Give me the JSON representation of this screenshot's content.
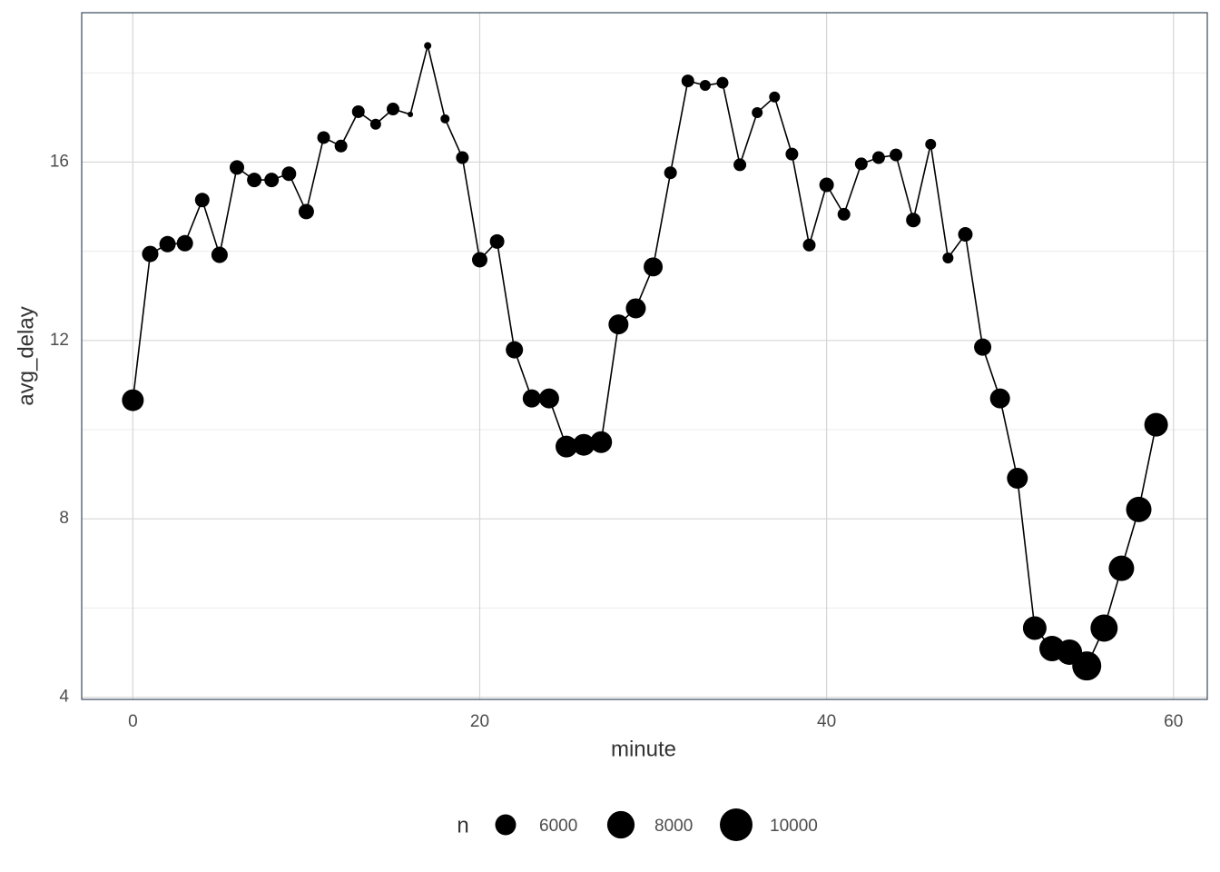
{
  "chart_data": {
    "type": "line",
    "x_label": "minute",
    "y_label": "avg_delay",
    "x": [
      0,
      1,
      2,
      3,
      4,
      5,
      6,
      7,
      8,
      9,
      10,
      11,
      12,
      13,
      14,
      15,
      16,
      17,
      18,
      19,
      20,
      21,
      22,
      23,
      24,
      25,
      26,
      27,
      28,
      29,
      30,
      31,
      32,
      33,
      34,
      35,
      36,
      37,
      38,
      39,
      40,
      41,
      42,
      43,
      44,
      45,
      46,
      47,
      48,
      49,
      50,
      51,
      52,
      53,
      54,
      55,
      56,
      57,
      58,
      59
    ],
    "values": [
      10.66,
      13.94,
      14.16,
      14.18,
      15.15,
      13.92,
      15.88,
      15.6,
      15.6,
      15.74,
      14.89,
      16.55,
      16.36,
      17.13,
      16.85,
      17.19,
      17.07,
      18.61,
      16.97,
      16.1,
      13.81,
      14.22,
      11.79,
      10.7,
      10.7,
      9.62,
      9.66,
      9.72,
      12.36,
      12.72,
      13.65,
      15.76,
      17.82,
      17.72,
      17.78,
      15.94,
      17.11,
      17.46,
      16.18,
      14.14,
      15.49,
      14.83,
      15.96,
      16.1,
      16.16,
      14.7,
      16.4,
      13.85,
      14.38,
      11.85,
      10.7,
      8.91,
      5.55,
      5.09,
      5.01,
      4.7,
      5.55,
      6.89,
      8.21,
      10.11
    ],
    "sizes": [
      6250,
      4940,
      4940,
      4940,
      4580,
      4940,
      4580,
      4580,
      4580,
      4580,
      4750,
      4270,
      4270,
      4270,
      4000,
      4270,
      3440,
      3580,
      3770,
      4270,
      4750,
      4580,
      5130,
      5330,
      5770,
      6250,
      6250,
      6250,
      5770,
      5770,
      5540,
      4270,
      4270,
      4000,
      4130,
      4270,
      4000,
      4000,
      4270,
      4270,
      4580,
      4270,
      4270,
      4270,
      4270,
      4580,
      4000,
      4000,
      4580,
      5130,
      5770,
      6000,
      6770,
      7330,
      7330,
      8580,
      7930,
      7330,
      7330,
      6770
    ],
    "color": "#000000",
    "xlim": [
      -2.95,
      61.95
    ],
    "xticks": [
      0,
      20,
      40,
      60
    ],
    "ylim": [
      3.95,
      19.35
    ],
    "yticks": [
      4,
      8,
      12,
      16
    ],
    "yminor": [
      6,
      10,
      14,
      18
    ],
    "grid": true,
    "size_legend": {
      "title": "n",
      "breaks": [
        6000,
        8000,
        10000
      ]
    }
  }
}
